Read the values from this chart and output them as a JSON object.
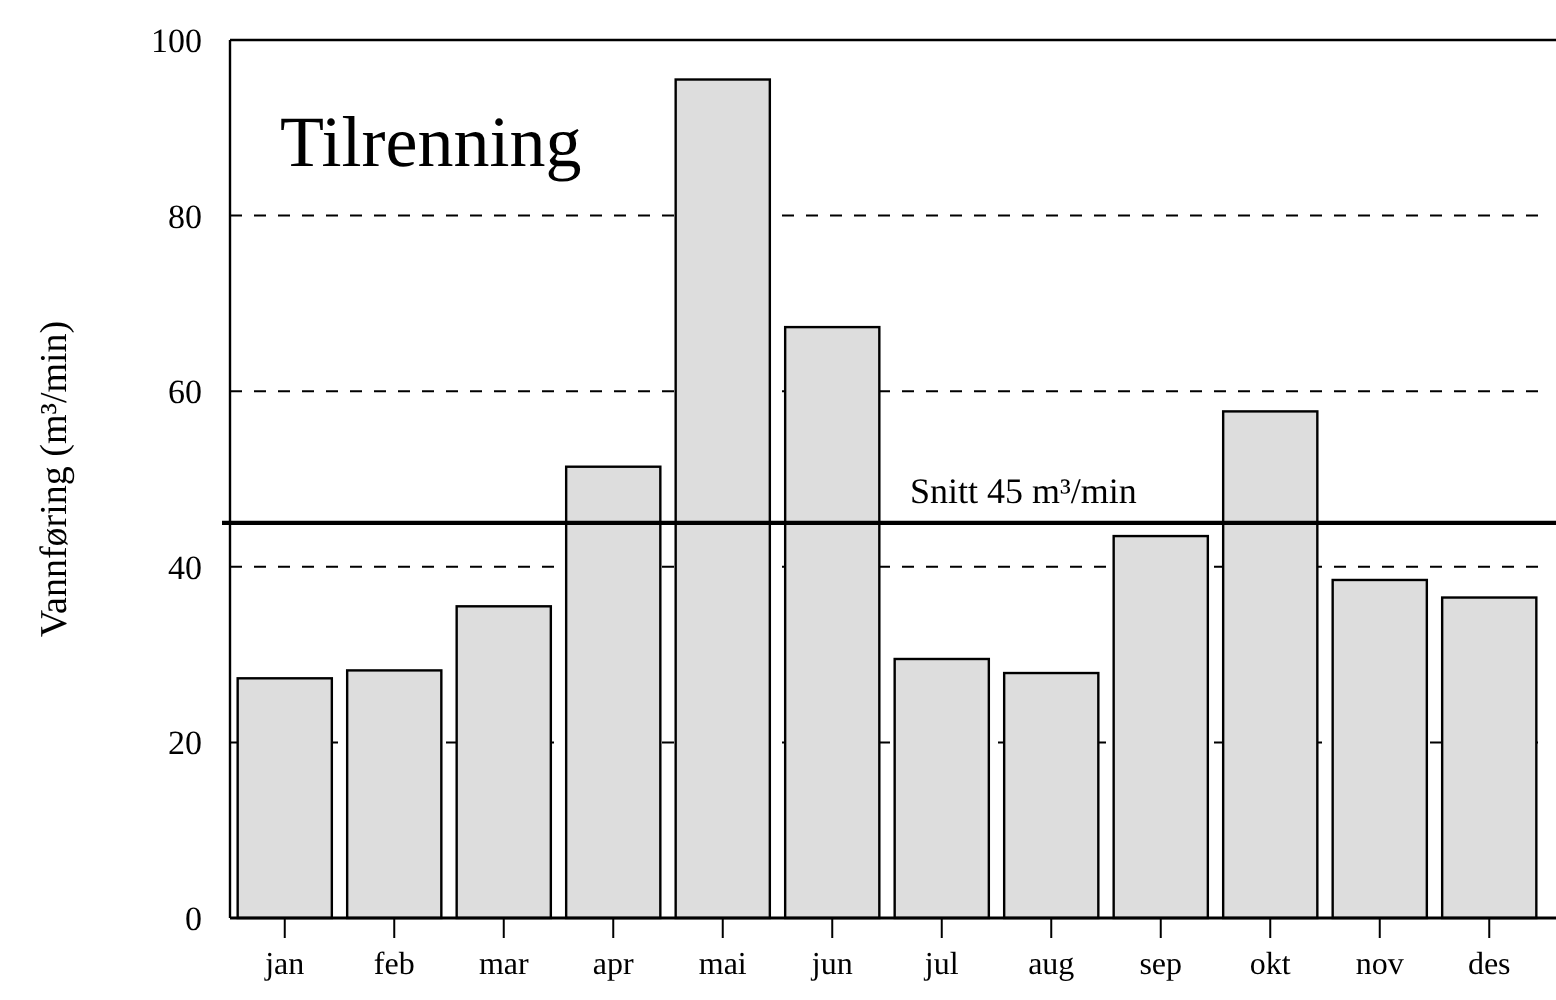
{
  "chart_data": {
    "type": "bar",
    "title": "Tilrenning",
    "ylabel": "Vannføring (m³/min)",
    "categories": [
      "jan",
      "feb",
      "mar",
      "apr",
      "mai",
      "jun",
      "jul",
      "aug",
      "sep",
      "okt",
      "nov",
      "des"
    ],
    "values": [
      27.3,
      28.2,
      35.5,
      51.4,
      95.5,
      67.3,
      29.5,
      27.9,
      43.5,
      57.7,
      38.5,
      36.5
    ],
    "color": "#dddddd",
    "ylim": [
      0,
      100
    ],
    "yticks": [
      0,
      20,
      40,
      60,
      80,
      100
    ],
    "grid": "y",
    "ref_lines": [
      {
        "axis": "y",
        "value": 45,
        "label": "Snitt 45 m³/min",
        "color": "#000000"
      }
    ]
  }
}
